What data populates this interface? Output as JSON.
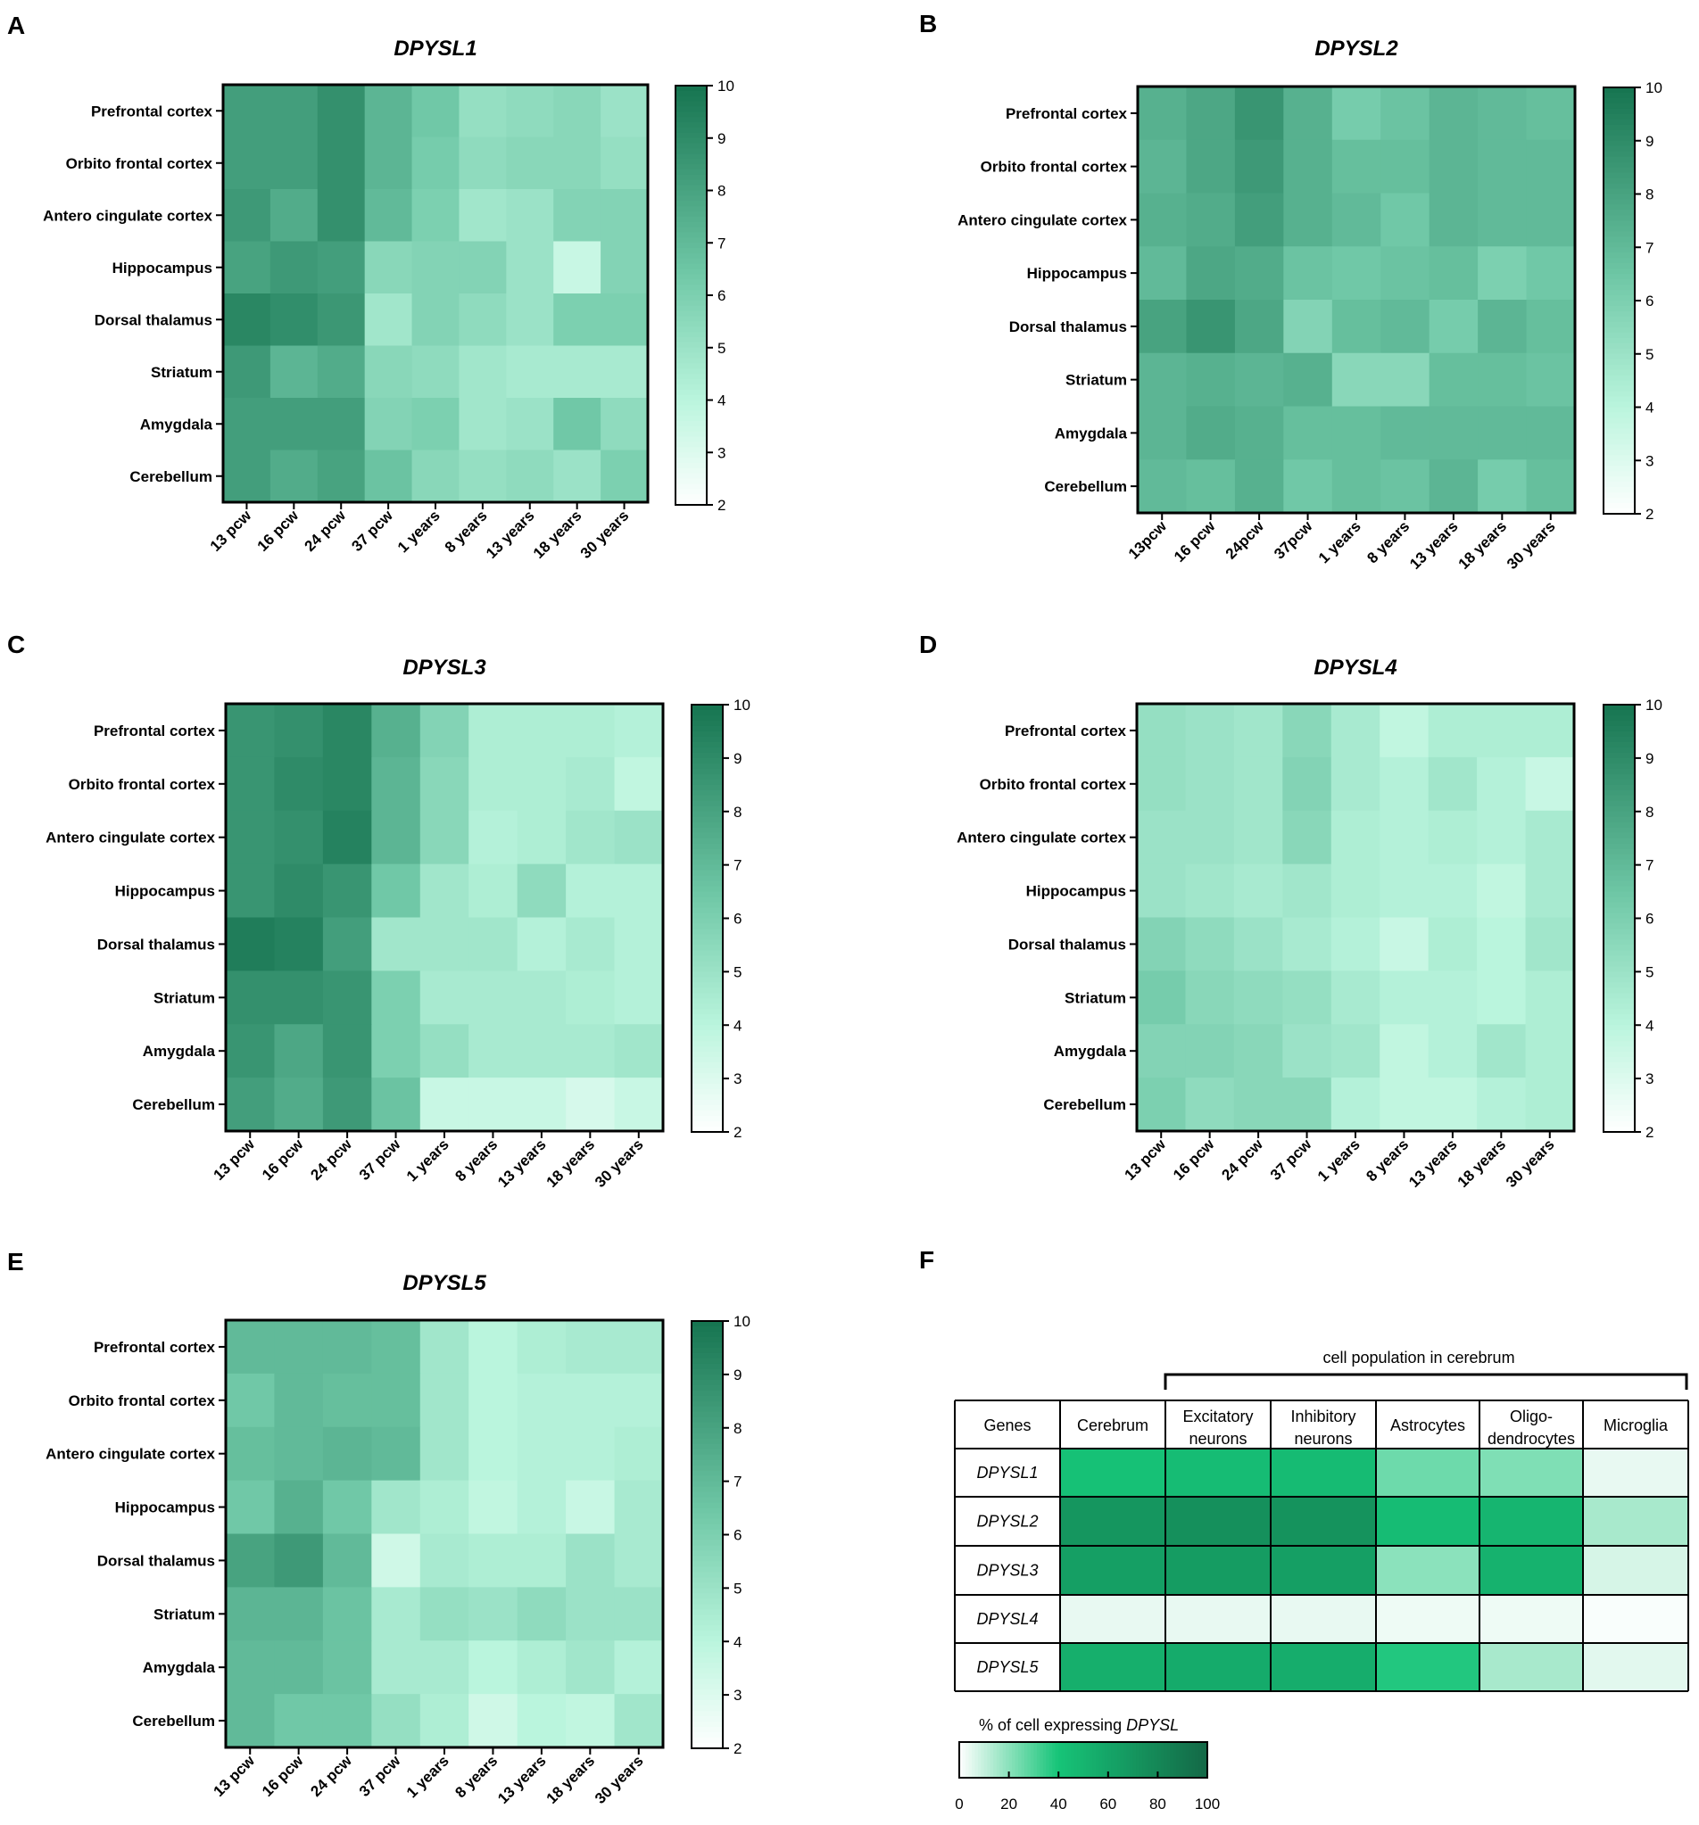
{
  "chart_data": [
    {
      "type": "heatmap",
      "panel": "A",
      "title": "DPYSL1",
      "rows": [
        "Prefrontal cortex",
        "Orbito frontal cortex",
        "Antero cingulate cortex",
        "Hippocampus",
        "Dorsal thalamus",
        "Striatum",
        "Amygdala",
        "Cerebellum"
      ],
      "columns": [
        "13 pcw",
        "16 pcw",
        "24 pcw",
        "37 pcw",
        "1 years",
        "8 years",
        "13 years",
        "18 years",
        "30 years"
      ],
      "values": [
        [
          8.2,
          8.2,
          8.8,
          7.2,
          6.4,
          5.2,
          5.4,
          5.6,
          5.0
        ],
        [
          8.2,
          8.2,
          8.8,
          7.2,
          6.2,
          5.4,
          5.6,
          5.6,
          5.2
        ],
        [
          8.4,
          7.6,
          8.8,
          7.0,
          6.0,
          4.8,
          5.0,
          5.8,
          5.8
        ],
        [
          8.0,
          8.4,
          8.2,
          5.6,
          5.8,
          5.8,
          5.0,
          3.6,
          5.8
        ],
        [
          9.2,
          8.9,
          8.5,
          4.8,
          5.8,
          5.4,
          5.0,
          6.0,
          6.0
        ],
        [
          8.4,
          7.2,
          7.6,
          5.6,
          5.4,
          4.8,
          4.6,
          4.6,
          4.6
        ],
        [
          8.2,
          8.2,
          8.2,
          5.8,
          6.0,
          4.8,
          5.0,
          6.4,
          5.4
        ],
        [
          8.2,
          7.6,
          8.0,
          6.6,
          5.6,
          5.2,
          5.4,
          5.0,
          6.0
        ]
      ],
      "colorbar": {
        "min": 2,
        "max": 10,
        "ticks": [
          "10",
          "9",
          "8",
          "7",
          "6",
          "5",
          "4",
          "3",
          "2"
        ]
      }
    },
    {
      "type": "heatmap",
      "panel": "B",
      "title": "DPYSL2",
      "rows": [
        "Prefrontal cortex",
        "Orbito frontal cortex",
        "Antero cingulate cortex",
        "Hippocampus",
        "Dorsal thalamus",
        "Striatum",
        "Amygdala",
        "Cerebellum"
      ],
      "columns": [
        "13pcw",
        "16 pcw",
        "24pcw",
        "37pcw",
        "1 years",
        "8 years",
        "13 years",
        "18 years",
        "30 years"
      ],
      "values": [
        [
          7.4,
          7.8,
          8.6,
          7.4,
          6.2,
          6.6,
          7.2,
          7.0,
          6.8
        ],
        [
          7.2,
          7.8,
          8.4,
          7.4,
          6.8,
          6.8,
          7.2,
          7.0,
          7.0
        ],
        [
          7.4,
          7.6,
          8.2,
          7.4,
          7.0,
          6.4,
          7.2,
          7.0,
          7.0
        ],
        [
          7.0,
          7.8,
          7.6,
          6.6,
          6.4,
          6.6,
          6.8,
          6.0,
          6.4
        ],
        [
          8.0,
          8.6,
          7.8,
          5.8,
          6.8,
          7.0,
          6.2,
          7.2,
          6.8
        ],
        [
          7.2,
          7.4,
          7.2,
          7.4,
          5.6,
          5.6,
          6.8,
          6.8,
          6.6
        ],
        [
          7.2,
          7.6,
          7.4,
          6.8,
          6.8,
          7.0,
          7.0,
          7.0,
          7.0
        ],
        [
          7.0,
          6.8,
          7.4,
          6.4,
          6.8,
          6.6,
          7.2,
          6.2,
          6.8
        ]
      ],
      "colorbar": {
        "min": 2,
        "max": 10,
        "ticks": [
          "10",
          "9",
          "8",
          "7",
          "6",
          "5",
          "4",
          "3",
          "2"
        ]
      }
    },
    {
      "type": "heatmap",
      "panel": "C",
      "title": "DPYSL3",
      "rows": [
        "Prefrontal cortex",
        "Orbito frontal cortex",
        "Antero cingulate cortex",
        "Hippocampus",
        "Dorsal thalamus",
        "Striatum",
        "Amygdala",
        "Cerebellum"
      ],
      "columns": [
        "13 pcw",
        "16 pcw",
        "24 pcw",
        "37 pcw",
        "1 years",
        "8 years",
        "13 years",
        "18 years",
        "30 years"
      ],
      "values": [
        [
          8.6,
          8.8,
          9.2,
          7.4,
          5.8,
          4.4,
          4.4,
          4.4,
          4.2
        ],
        [
          8.6,
          9.0,
          9.2,
          7.2,
          5.6,
          4.4,
          4.4,
          4.6,
          3.8
        ],
        [
          8.6,
          8.8,
          9.4,
          7.2,
          5.6,
          4.2,
          4.4,
          4.8,
          5.0
        ],
        [
          8.6,
          9.0,
          8.6,
          6.4,
          4.8,
          4.4,
          5.4,
          4.2,
          4.2
        ],
        [
          9.6,
          9.4,
          8.2,
          4.8,
          4.8,
          4.8,
          4.2,
          4.6,
          4.2
        ],
        [
          8.8,
          8.8,
          8.6,
          6.0,
          4.6,
          4.6,
          4.6,
          4.4,
          4.2
        ],
        [
          8.6,
          7.8,
          8.6,
          6.0,
          5.2,
          4.6,
          4.6,
          4.6,
          4.8
        ],
        [
          8.2,
          7.6,
          8.4,
          6.6,
          3.6,
          3.6,
          3.6,
          3.2,
          3.6
        ]
      ],
      "colorbar": {
        "min": 2,
        "max": 10,
        "ticks": [
          "10",
          "9",
          "8",
          "7",
          "6",
          "5",
          "4",
          "3",
          "2"
        ]
      }
    },
    {
      "type": "heatmap",
      "panel": "D",
      "title": "DPYSL4",
      "rows": [
        "Prefrontal cortex",
        "Orbito frontal cortex",
        "Antero cingulate cortex",
        "Hippocampus",
        "Dorsal thalamus",
        "Striatum",
        "Amygdala",
        "Cerebellum"
      ],
      "columns": [
        "13 pcw",
        "16 pcw",
        "24 pcw",
        "37 pcw",
        "1 years",
        "8 years",
        "13 years",
        "18 years",
        "30 years"
      ],
      "values": [
        [
          5.2,
          5.0,
          4.8,
          5.6,
          4.6,
          3.8,
          4.4,
          4.4,
          4.4
        ],
        [
          5.2,
          5.0,
          4.8,
          5.8,
          4.6,
          4.2,
          4.8,
          4.2,
          3.6
        ],
        [
          5.0,
          5.0,
          4.8,
          5.6,
          4.4,
          4.2,
          4.4,
          4.2,
          4.6
        ],
        [
          5.0,
          4.8,
          4.6,
          4.8,
          4.4,
          4.2,
          4.2,
          3.8,
          4.6
        ],
        [
          5.8,
          5.4,
          5.0,
          4.6,
          4.2,
          3.6,
          4.4,
          4.0,
          4.8
        ],
        [
          6.2,
          5.6,
          5.4,
          5.2,
          4.6,
          4.2,
          4.2,
          4.0,
          4.4
        ],
        [
          5.8,
          5.8,
          5.6,
          5.0,
          4.8,
          3.8,
          4.2,
          4.8,
          4.4
        ],
        [
          6.0,
          5.4,
          5.6,
          5.6,
          4.2,
          3.8,
          3.8,
          4.2,
          4.4
        ]
      ],
      "colorbar": {
        "min": 2,
        "max": 10,
        "ticks": [
          "10",
          "9",
          "8",
          "7",
          "6",
          "5",
          "4",
          "3",
          "2"
        ]
      }
    },
    {
      "type": "heatmap",
      "panel": "E",
      "title": "DPYSL5",
      "rows": [
        "Prefrontal cortex",
        "Orbito frontal cortex",
        "Antero cingulate cortex",
        "Hippocampus",
        "Dorsal thalamus",
        "Striatum",
        "Amygdala",
        "Cerebellum"
      ],
      "columns": [
        "13 pcw",
        "16 pcw",
        "24 pcw",
        "37 pcw",
        "1 years",
        "8 years",
        "13 years",
        "18 years",
        "30 years"
      ],
      "values": [
        [
          7.0,
          7.0,
          7.0,
          6.8,
          4.8,
          4.0,
          4.4,
          4.6,
          4.6
        ],
        [
          6.4,
          7.0,
          6.8,
          6.8,
          4.8,
          4.0,
          4.2,
          4.2,
          4.2
        ],
        [
          6.8,
          7.0,
          7.2,
          7.0,
          4.8,
          4.0,
          4.2,
          4.2,
          4.4
        ],
        [
          6.4,
          7.4,
          6.4,
          4.8,
          4.4,
          3.8,
          4.2,
          3.6,
          4.6
        ],
        [
          8.0,
          8.4,
          7.0,
          3.4,
          4.6,
          4.4,
          4.4,
          5.0,
          4.6
        ],
        [
          7.2,
          7.2,
          6.6,
          4.6,
          5.2,
          5.0,
          5.4,
          5.0,
          5.0
        ],
        [
          7.0,
          7.0,
          6.6,
          4.6,
          4.6,
          4.0,
          4.4,
          4.8,
          4.2
        ],
        [
          7.0,
          6.4,
          6.4,
          5.2,
          4.4,
          3.4,
          4.0,
          3.8,
          4.8
        ]
      ],
      "colorbar": {
        "min": 2,
        "max": 10,
        "ticks": [
          "10",
          "9",
          "8",
          "7",
          "6",
          "5",
          "4",
          "3",
          "2"
        ]
      }
    },
    {
      "type": "table",
      "panel": "F",
      "group_header": "cell population in cerebrum",
      "header": [
        "Genes",
        "Cerebrum",
        "Excitatory neurons",
        "Inhibitory neurons",
        "Astrocytes",
        "Oligo-dendrocytes",
        "Microglia"
      ],
      "header_lines": [
        [
          "Genes"
        ],
        [
          "Cerebrum"
        ],
        [
          "Excitatory",
          "neurons"
        ],
        [
          "Inhibitory",
          "neurons"
        ],
        [
          "Astrocytes"
        ],
        [
          "Oligo-",
          "dendrocytes"
        ],
        [
          "Microglia"
        ]
      ],
      "genes": [
        "DPYSL1",
        "DPYSL2",
        "DPYSL3",
        "DPYSL4",
        "DPYSL5"
      ],
      "values": [
        [
          42,
          45,
          46,
          25,
          22,
          4
        ],
        [
          70,
          74,
          72,
          45,
          50,
          15
        ],
        [
          64,
          66,
          64,
          20,
          52,
          7
        ],
        [
          4,
          4,
          4,
          3,
          3,
          1
        ],
        [
          54,
          56,
          55,
          38,
          15,
          5
        ]
      ],
      "colorbar": {
        "label_prefix": "% of cell expressing",
        "label_gene": "DPYSL",
        "min": 0,
        "max": 100,
        "ticks": [
          "0",
          "20",
          "40",
          "60",
          "80",
          "100"
        ]
      }
    }
  ]
}
